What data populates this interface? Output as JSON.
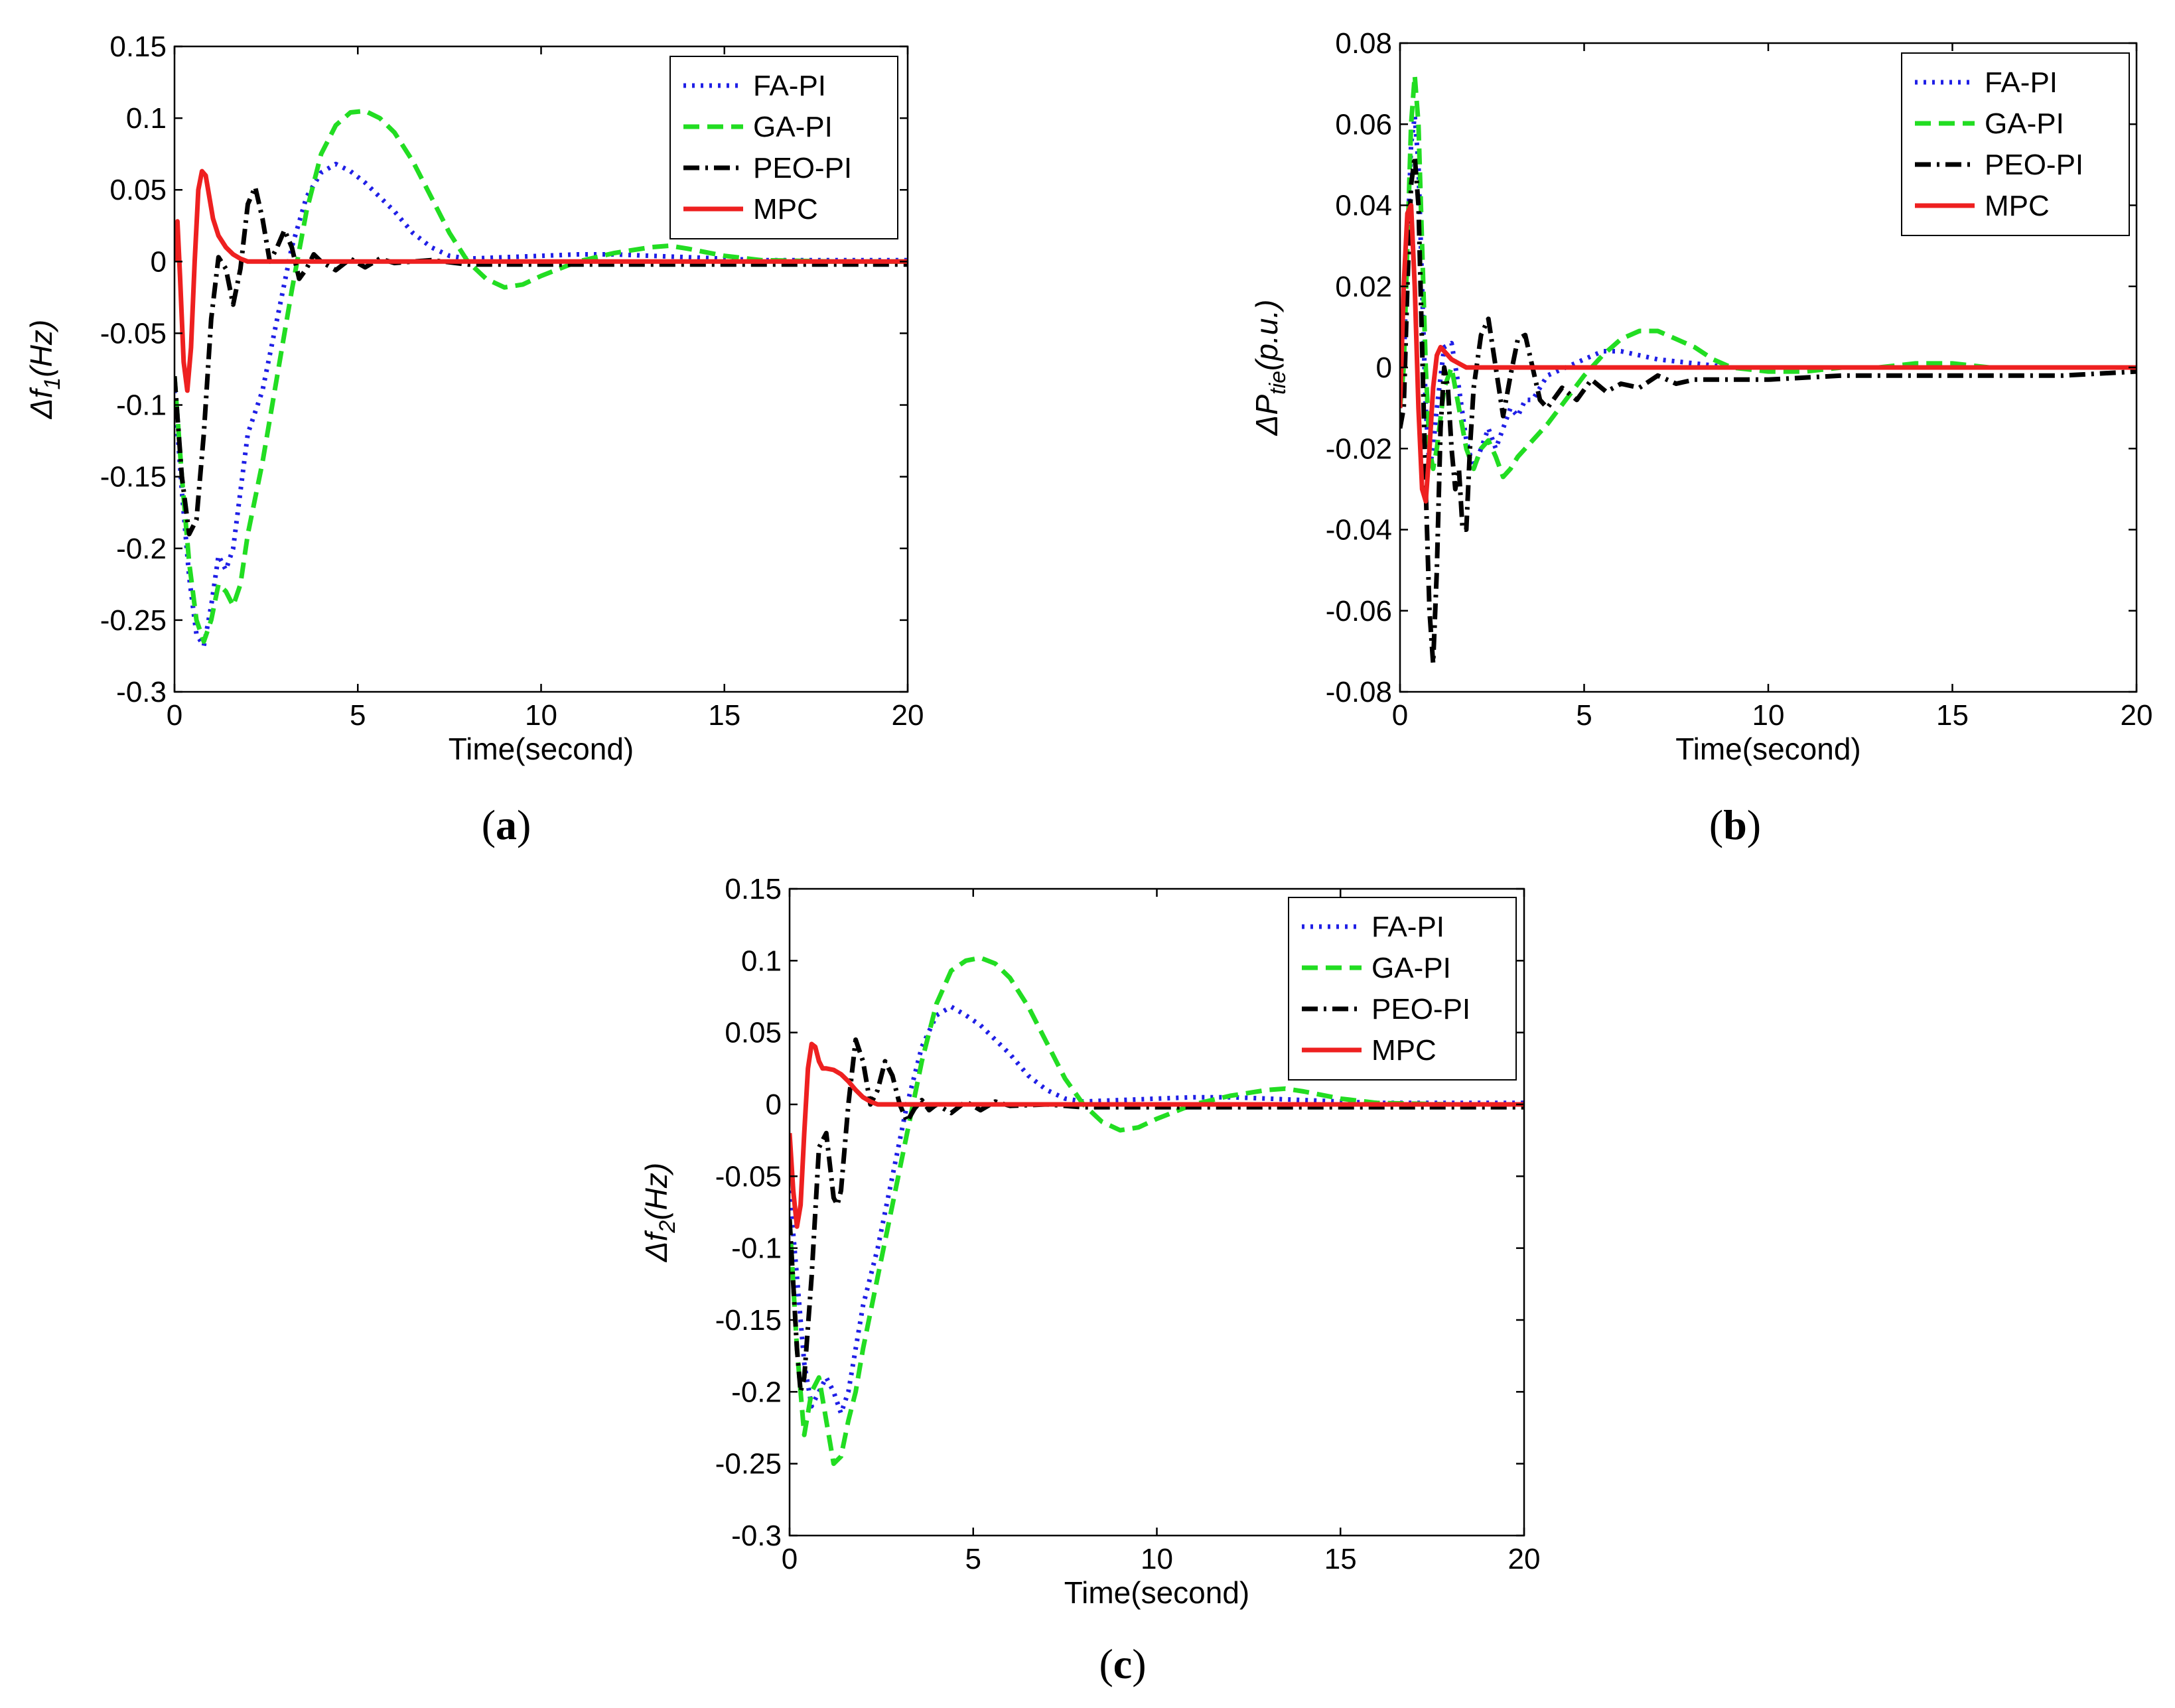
{
  "colors": {
    "FA-PI": "#1f1fe6",
    "GA-PI": "#22dd22",
    "PEO-PI": "#000000",
    "MPC": "#ee2020"
  },
  "chart_data": [
    {
      "panel_label": "a",
      "type": "line",
      "xlabel": "Time(second)",
      "ylabel": "Δf1(Hz)",
      "ylabel_main": "Δf",
      "ylabel_sub": "1",
      "ylabel_unit": "(Hz)",
      "xlim": [
        0,
        20
      ],
      "ylim": [
        -0.3,
        0.15
      ],
      "xticks": [
        0,
        5,
        10,
        15,
        20
      ],
      "xtick_labels": [
        "0",
        "5",
        "10",
        "15",
        "20"
      ],
      "yticks": [
        0.15,
        0.1,
        0.05,
        0,
        -0.05,
        -0.1,
        -0.15,
        -0.2,
        -0.25,
        -0.3
      ],
      "ytick_labels": [
        "0.15",
        "0.1",
        "0.05",
        "0",
        "-0.05",
        "-0.1",
        "-0.15",
        "-0.2",
        "-0.25",
        "-0.3"
      ],
      "grid": false,
      "legend": "top-right",
      "series": [
        {
          "name": "FA-PI",
          "style": "dotted",
          "x": [
            0,
            0.2,
            0.4,
            0.6,
            0.8,
            1.0,
            1.2,
            1.4,
            1.6,
            1.8,
            2.0,
            2.4,
            2.8,
            3.2,
            3.6,
            4.0,
            4.4,
            4.8,
            5.2,
            5.6,
            6.0,
            6.5,
            7.0,
            7.5,
            8.0,
            9.0,
            10.0,
            11.0,
            12.0,
            13.0,
            14.0,
            15.0,
            16.0,
            18.0,
            20.0
          ],
          "y": [
            -0.09,
            -0.16,
            -0.22,
            -0.26,
            -0.268,
            -0.24,
            -0.205,
            -0.215,
            -0.2,
            -0.16,
            -0.12,
            -0.09,
            -0.04,
            0.01,
            0.045,
            0.062,
            0.068,
            0.063,
            0.055,
            0.045,
            0.035,
            0.02,
            0.01,
            0.004,
            0.002,
            0.003,
            0.004,
            0.005,
            0.005,
            0.004,
            0.003,
            0.002,
            0.001,
            0.001,
            0.001
          ]
        },
        {
          "name": "GA-PI",
          "style": "dashed",
          "x": [
            0,
            0.2,
            0.4,
            0.6,
            0.8,
            1.0,
            1.2,
            1.4,
            1.6,
            1.8,
            2.0,
            2.4,
            2.8,
            3.2,
            3.6,
            4.0,
            4.4,
            4.8,
            5.2,
            5.6,
            6.0,
            6.5,
            7.0,
            7.5,
            8.0,
            8.5,
            9.0,
            9.5,
            10.0,
            11.0,
            12.0,
            13.0,
            13.5,
            14.0,
            15.0,
            16.0,
            18.0,
            20.0
          ],
          "y": [
            -0.08,
            -0.15,
            -0.21,
            -0.25,
            -0.265,
            -0.25,
            -0.225,
            -0.23,
            -0.24,
            -0.225,
            -0.19,
            -0.14,
            -0.08,
            -0.02,
            0.035,
            0.075,
            0.095,
            0.104,
            0.105,
            0.1,
            0.09,
            0.07,
            0.045,
            0.02,
            0.0,
            -0.012,
            -0.018,
            -0.016,
            -0.01,
            0.0,
            0.006,
            0.01,
            0.011,
            0.009,
            0.004,
            0.001,
            0.0,
            0.0
          ]
        },
        {
          "name": "PEO-PI",
          "style": "dashdot",
          "x": [
            0,
            0.2,
            0.4,
            0.6,
            0.8,
            1.0,
            1.2,
            1.4,
            1.6,
            1.8,
            2.0,
            2.2,
            2.4,
            2.6,
            2.8,
            3.0,
            3.2,
            3.4,
            3.6,
            3.8,
            4.0,
            4.4,
            4.8,
            5.2,
            5.6,
            6.0,
            7.0,
            8.0,
            10.0,
            12.0,
            15.0,
            20.0
          ],
          "y": [
            -0.08,
            -0.15,
            -0.19,
            -0.18,
            -0.12,
            -0.04,
            0.003,
            -0.005,
            -0.03,
            -0.005,
            0.04,
            0.052,
            0.03,
            0.0,
            0.01,
            0.022,
            0.01,
            -0.012,
            -0.005,
            0.005,
            0.0,
            -0.006,
            0.002,
            -0.004,
            0.002,
            -0.001,
            0.001,
            -0.002,
            -0.002,
            -0.002,
            -0.002,
            -0.002
          ]
        },
        {
          "name": "MPC",
          "style": "solid",
          "x": [
            0,
            0.08,
            0.15,
            0.25,
            0.35,
            0.45,
            0.55,
            0.65,
            0.75,
            0.85,
            0.95,
            1.05,
            1.2,
            1.4,
            1.6,
            1.8,
            2.0,
            2.4,
            3.0,
            4.0,
            5.0,
            6.0,
            8.0,
            10.0,
            15.0,
            20.0
          ],
          "y": [
            0.0,
            0.028,
            -0.01,
            -0.07,
            -0.09,
            -0.06,
            0.0,
            0.05,
            0.063,
            0.06,
            0.045,
            0.03,
            0.018,
            0.01,
            0.005,
            0.002,
            0.0,
            0.0,
            0.0,
            0.0,
            0.0,
            0.0,
            0.0,
            0.0,
            0.0,
            0.0
          ]
        }
      ]
    },
    {
      "panel_label": "b",
      "type": "line",
      "xlabel": "Time(second)",
      "ylabel": "ΔPtie(p.u.)",
      "ylabel_main": "ΔP",
      "ylabel_sub": "tie",
      "ylabel_unit": "(p.u.)",
      "xlim": [
        0,
        20
      ],
      "ylim": [
        -0.08,
        0.08
      ],
      "xticks": [
        0,
        5,
        10,
        15,
        20
      ],
      "xtick_labels": [
        "0",
        "5",
        "10",
        "15",
        "20"
      ],
      "yticks": [
        0.08,
        0.06,
        0.04,
        0.02,
        0,
        -0.02,
        -0.04,
        -0.06,
        -0.08
      ],
      "ytick_labels": [
        "0.08",
        "0.06",
        "0.04",
        "0.02",
        "0",
        "-0.02",
        "-0.04",
        "-0.06",
        "-0.08"
      ],
      "grid": false,
      "legend": "top-right",
      "series": [
        {
          "name": "FA-PI",
          "style": "dotted",
          "x": [
            0,
            0.1,
            0.2,
            0.3,
            0.4,
            0.5,
            0.6,
            0.7,
            0.8,
            0.9,
            1.0,
            1.2,
            1.4,
            1.6,
            1.8,
            2.0,
            2.2,
            2.4,
            2.6,
            2.8,
            3.0,
            3.2,
            3.4,
            3.6,
            3.8,
            4.0,
            4.5,
            5.0,
            5.5,
            6.0,
            7.0,
            8.0,
            9.0,
            10.0,
            11.0,
            12.0,
            14.0,
            16.0,
            20.0
          ],
          "y": [
            -0.01,
            0.0,
            0.03,
            0.055,
            0.062,
            0.05,
            0.02,
            -0.01,
            -0.025,
            -0.02,
            -0.01,
            0.005,
            0.006,
            -0.005,
            -0.018,
            -0.025,
            -0.02,
            -0.015,
            -0.02,
            -0.015,
            -0.01,
            -0.012,
            -0.008,
            -0.008,
            -0.005,
            -0.002,
            0.0,
            0.002,
            0.004,
            0.004,
            0.002,
            0.001,
            0.0,
            0.0,
            0.0,
            0.0,
            0.0,
            0.0,
            0.0
          ]
        },
        {
          "name": "GA-PI",
          "style": "dashed",
          "x": [
            0,
            0.1,
            0.2,
            0.3,
            0.4,
            0.5,
            0.6,
            0.7,
            0.8,
            0.9,
            1.0,
            1.2,
            1.4,
            1.6,
            1.8,
            2.0,
            2.2,
            2.4,
            2.6,
            2.8,
            3.0,
            3.2,
            3.4,
            3.6,
            4.0,
            4.5,
            5.0,
            5.5,
            6.0,
            6.5,
            7.0,
            7.5,
            8.0,
            8.5,
            9.0,
            10.0,
            11.0,
            12.0,
            13.0,
            14.0,
            15.0,
            16.0,
            18.0,
            20.0
          ],
          "y": [
            -0.01,
            0.0,
            0.03,
            0.06,
            0.072,
            0.06,
            0.03,
            0.0,
            -0.02,
            -0.025,
            -0.02,
            -0.005,
            0.0,
            -0.01,
            -0.02,
            -0.025,
            -0.02,
            -0.018,
            -0.022,
            -0.027,
            -0.025,
            -0.022,
            -0.02,
            -0.018,
            -0.014,
            -0.008,
            -0.002,
            0.003,
            0.007,
            0.009,
            0.009,
            0.007,
            0.005,
            0.002,
            0.0,
            -0.001,
            -0.001,
            0.0,
            0.0,
            0.001,
            0.001,
            0.0,
            0.0,
            0.0
          ]
        },
        {
          "name": "PEO-PI",
          "style": "dashdot",
          "x": [
            0,
            0.1,
            0.2,
            0.3,
            0.4,
            0.5,
            0.6,
            0.7,
            0.8,
            0.9,
            1.0,
            1.1,
            1.2,
            1.3,
            1.4,
            1.5,
            1.6,
            1.7,
            1.8,
            1.9,
            2.0,
            2.2,
            2.4,
            2.6,
            2.8,
            3.0,
            3.2,
            3.4,
            3.6,
            3.8,
            4.0,
            4.4,
            4.8,
            5.2,
            5.6,
            6.0,
            6.5,
            7.0,
            7.5,
            8.0,
            9.0,
            10.0,
            12.0,
            14.0,
            16.0,
            18.0,
            20.0
          ],
          "y": [
            -0.015,
            -0.01,
            0.02,
            0.045,
            0.052,
            0.04,
            0.005,
            -0.03,
            -0.06,
            -0.073,
            -0.05,
            -0.015,
            0.0,
            -0.005,
            -0.02,
            -0.03,
            -0.025,
            -0.04,
            -0.04,
            -0.02,
            -0.005,
            0.008,
            0.012,
            0.0,
            -0.012,
            -0.002,
            0.007,
            0.008,
            0.0,
            -0.008,
            -0.01,
            -0.005,
            -0.008,
            -0.003,
            -0.006,
            -0.004,
            -0.005,
            -0.002,
            -0.004,
            -0.003,
            -0.003,
            -0.003,
            -0.002,
            -0.002,
            -0.002,
            -0.002,
            -0.001
          ]
        },
        {
          "name": "MPC",
          "style": "solid",
          "x": [
            0,
            0.1,
            0.2,
            0.3,
            0.4,
            0.5,
            0.6,
            0.7,
            0.8,
            0.9,
            1.0,
            1.1,
            1.2,
            1.3,
            1.4,
            1.6,
            1.8,
            2.0,
            2.5,
            3.0,
            4.0,
            5.0,
            10.0,
            15.0,
            20.0
          ],
          "y": [
            -0.01,
            0.02,
            0.038,
            0.04,
            0.02,
            -0.01,
            -0.03,
            -0.033,
            -0.02,
            -0.005,
            0.003,
            0.005,
            0.004,
            0.003,
            0.002,
            0.001,
            0.0,
            0.0,
            0.0,
            0.0,
            0.0,
            0.0,
            0.0,
            0.0,
            0.0
          ]
        }
      ]
    },
    {
      "panel_label": "c",
      "type": "line",
      "xlabel": "Time(second)",
      "ylabel": "Δf2(Hz)",
      "ylabel_main": "Δf",
      "ylabel_sub": "2",
      "ylabel_unit": "(Hz)",
      "xlim": [
        0,
        20
      ],
      "ylim": [
        -0.3,
        0.15
      ],
      "xticks": [
        0,
        5,
        10,
        15,
        20
      ],
      "xtick_labels": [
        "0",
        "5",
        "10",
        "15",
        "20"
      ],
      "yticks": [
        0.15,
        0.1,
        0.05,
        0,
        -0.05,
        -0.1,
        -0.15,
        -0.2,
        -0.25,
        -0.3
      ],
      "ytick_labels": [
        "0.15",
        "0.1",
        "0.05",
        "0",
        "-0.05",
        "-0.1",
        "-0.15",
        "-0.2",
        "-0.25",
        "-0.3"
      ],
      "grid": false,
      "legend": "top-right",
      "series": [
        {
          "name": "FA-PI",
          "style": "dotted",
          "x": [
            0,
            0.2,
            0.4,
            0.6,
            0.8,
            1.0,
            1.2,
            1.4,
            1.6,
            1.8,
            2.0,
            2.4,
            2.8,
            3.2,
            3.6,
            4.0,
            4.4,
            4.8,
            5.2,
            5.6,
            6.0,
            6.5,
            7.0,
            7.5,
            8.0,
            9.0,
            10.0,
            11.0,
            12.0,
            13.0,
            14.0,
            15.0,
            16.0,
            18.0,
            20.0
          ],
          "y": [
            -0.06,
            -0.12,
            -0.18,
            -0.21,
            -0.2,
            -0.19,
            -0.2,
            -0.215,
            -0.2,
            -0.17,
            -0.14,
            -0.1,
            -0.05,
            0.0,
            0.04,
            0.062,
            0.068,
            0.062,
            0.055,
            0.045,
            0.035,
            0.02,
            0.01,
            0.004,
            0.002,
            0.003,
            0.004,
            0.005,
            0.005,
            0.004,
            0.003,
            0.002,
            0.001,
            0.001,
            0.001
          ]
        },
        {
          "name": "GA-PI",
          "style": "dashed",
          "x": [
            0,
            0.2,
            0.4,
            0.6,
            0.8,
            1.0,
            1.2,
            1.4,
            1.6,
            1.8,
            2.0,
            2.4,
            2.8,
            3.2,
            3.6,
            4.0,
            4.4,
            4.8,
            5.2,
            5.6,
            6.0,
            6.5,
            7.0,
            7.5,
            8.0,
            8.5,
            9.0,
            9.5,
            10.0,
            11.0,
            12.0,
            13.0,
            13.5,
            14.0,
            15.0,
            16.0,
            18.0,
            20.0
          ],
          "y": [
            -0.08,
            -0.17,
            -0.23,
            -0.2,
            -0.19,
            -0.22,
            -0.25,
            -0.245,
            -0.22,
            -0.2,
            -0.17,
            -0.12,
            -0.07,
            -0.02,
            0.03,
            0.07,
            0.093,
            0.1,
            0.102,
            0.098,
            0.088,
            0.068,
            0.043,
            0.018,
            0.0,
            -0.012,
            -0.018,
            -0.016,
            -0.01,
            0.0,
            0.006,
            0.01,
            0.011,
            0.009,
            0.004,
            0.001,
            0.0,
            0.0
          ]
        },
        {
          "name": "PEO-PI",
          "style": "dashdot",
          "x": [
            0,
            0.2,
            0.3,
            0.4,
            0.6,
            0.8,
            1.0,
            1.2,
            1.3,
            1.4,
            1.6,
            1.8,
            2.0,
            2.2,
            2.4,
            2.6,
            2.8,
            3.0,
            3.2,
            3.4,
            3.6,
            3.8,
            4.0,
            4.4,
            4.8,
            5.2,
            5.6,
            6.0,
            7.0,
            8.0,
            10.0,
            12.0,
            15.0,
            20.0
          ],
          "y": [
            -0.08,
            -0.17,
            -0.2,
            -0.19,
            -0.12,
            -0.03,
            -0.02,
            -0.065,
            -0.07,
            -0.06,
            0.0,
            0.045,
            0.03,
            0.0,
            0.01,
            0.03,
            0.02,
            0.0,
            -0.012,
            -0.003,
            0.003,
            -0.004,
            0.0,
            -0.006,
            0.002,
            -0.004,
            0.002,
            -0.001,
            0.0,
            -0.002,
            -0.002,
            -0.002,
            -0.002,
            -0.002
          ]
        },
        {
          "name": "MPC",
          "style": "solid",
          "x": [
            0,
            0.1,
            0.2,
            0.3,
            0.4,
            0.5,
            0.6,
            0.7,
            0.8,
            0.9,
            1.0,
            1.2,
            1.4,
            1.6,
            1.8,
            2.0,
            2.2,
            2.4,
            2.6,
            2.8,
            3.0,
            3.5,
            4.0,
            5.0,
            10.0,
            15.0,
            20.0
          ],
          "y": [
            -0.02,
            -0.06,
            -0.085,
            -0.07,
            -0.02,
            0.025,
            0.042,
            0.04,
            0.03,
            0.025,
            0.025,
            0.024,
            0.021,
            0.016,
            0.01,
            0.005,
            0.002,
            0.0,
            0.0,
            0.0,
            0.0,
            0.0,
            0.0,
            0.0,
            0.0,
            0.0,
            0.0
          ]
        }
      ]
    }
  ]
}
